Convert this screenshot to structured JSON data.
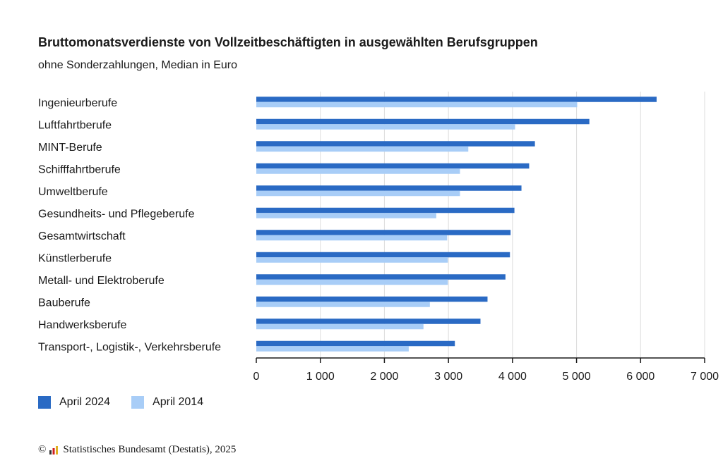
{
  "title": "Bruttomonatsverdienste von Vollzeitbeschäftigten in ausgewählten Berufsgruppen",
  "subtitle": "ohne Sonderzahlungen, Median in Euro",
  "footer": {
    "copyright_symbol": "©",
    "text": "Statistisches Bundesamt (Destatis), 2025"
  },
  "colors": {
    "series_2024": "#2a6ac4",
    "series_2014": "#a8cdf7",
    "grid": "#dcdcdc",
    "axis": "#1a1a1a"
  },
  "chart_data": {
    "type": "bar",
    "orientation": "horizontal",
    "title": "Bruttomonatsverdienste von Vollzeitbeschäftigten in ausgewählten Berufsgruppen",
    "subtitle": "ohne Sonderzahlungen, Median in Euro",
    "xlim": [
      0,
      7000
    ],
    "xticks": [
      0,
      1000,
      2000,
      3000,
      4000,
      5000,
      6000,
      7000
    ],
    "xtick_labels": [
      "0",
      "1 000",
      "2 000",
      "3 000",
      "4 000",
      "5 000",
      "6 000",
      "7 000"
    ],
    "grid": true,
    "legend_position": "bottom-left",
    "categories": [
      "Ingenieurberufe",
      "Luftfahrtberufe",
      "MINT-Berufe",
      "Schifffahrtberufe",
      "Umweltberufe",
      "Gesundheits- und Pflegeberufe",
      "Gesamtwirtschaft",
      "Künstlerberufe",
      "Metall- und Elektroberufe",
      "Bauberufe",
      "Handwerksberufe",
      "Transport-, Logistik-, Verkehrsberufe"
    ],
    "series": [
      {
        "name": "April 2024",
        "values": [
          6250,
          5200,
          4350,
          4260,
          4140,
          4030,
          3970,
          3960,
          3890,
          3610,
          3500,
          3100
        ]
      },
      {
        "name": "April 2014",
        "values": [
          5010,
          4040,
          3310,
          3180,
          3180,
          2810,
          2980,
          2990,
          2990,
          2710,
          2610,
          2380
        ]
      }
    ]
  }
}
